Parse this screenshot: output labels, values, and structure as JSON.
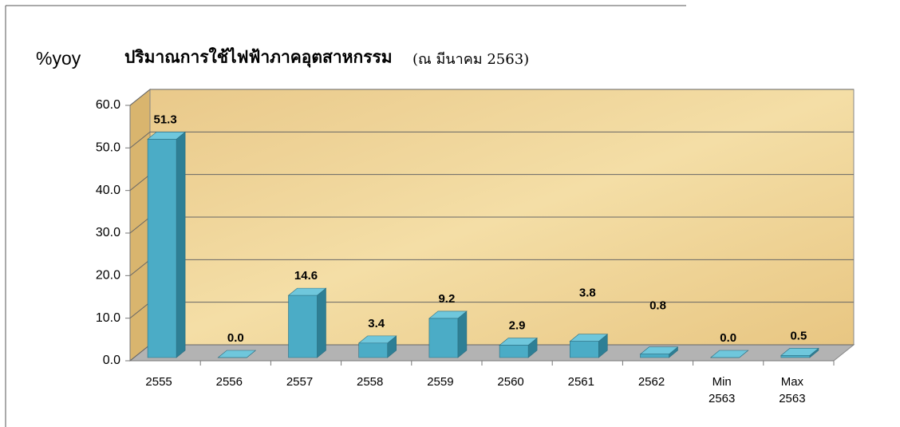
{
  "chart_data": {
    "type": "bar",
    "title": "%yoy",
    "subtitle": "ปริมาณการใช้ไฟฟ้าภาคอุตสาหกรรม",
    "annotation": "(ณ มีนาคม 2563)",
    "categories": [
      "2555",
      "2556",
      "2557",
      "2558",
      "2559",
      "2560",
      "2561",
      "2562",
      "Min 2563",
      "Max 2563"
    ],
    "values": [
      51.3,
      0.0,
      14.6,
      3.4,
      9.2,
      2.9,
      3.8,
      0.8,
      0.0,
      0.5
    ],
    "value_labels": [
      "51.3",
      "0.0",
      "14.6",
      "3.4",
      "9.2",
      "2.9",
      "3.8",
      "0.8",
      "0.0",
      "0.5"
    ],
    "color": "#4bacc6",
    "ylim": [
      0,
      60
    ],
    "yticks": [
      {
        "value": 0,
        "label": "0.0"
      },
      {
        "value": 10,
        "label": "10.0"
      },
      {
        "value": 20,
        "label": "20.0"
      },
      {
        "value": 30,
        "label": "30.0"
      },
      {
        "value": 40,
        "label": "40.0"
      },
      {
        "value": 50,
        "label": "50.0"
      },
      {
        "value": 60,
        "label": "60.0"
      }
    ],
    "grid": true
  }
}
